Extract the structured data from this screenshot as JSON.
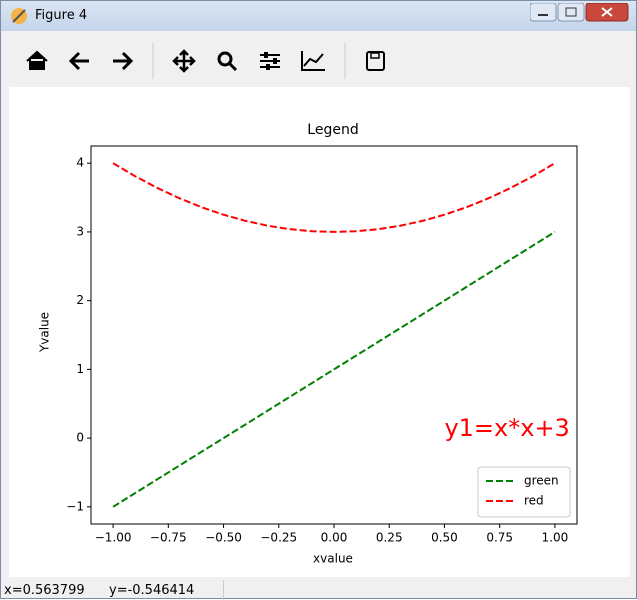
{
  "window": {
    "title": "Figure 4"
  },
  "status_bar": {
    "x": "x=0.563799",
    "y": "y=-0.546414"
  },
  "chart_data": {
    "type": "line",
    "title": "Legend",
    "x_label": "xvalue",
    "y_label": "Yvalue",
    "x": [
      -1,
      -0.9,
      -0.8,
      -0.7,
      -0.6,
      -0.5,
      -0.4,
      -0.3,
      -0.2,
      -0.1,
      0,
      0.1,
      0.2,
      0.3,
      0.4,
      0.5,
      0.6,
      0.7,
      0.8,
      0.9,
      1
    ],
    "series": [
      {
        "name": "green",
        "color": "#008000",
        "values": [
          -1,
          -0.8,
          -0.6,
          -0.4,
          -0.2,
          0,
          0.2,
          0.4,
          0.6,
          0.8,
          1,
          1.2,
          1.4,
          1.6,
          1.8,
          2,
          2.2,
          2.4,
          2.6,
          2.8,
          3
        ]
      },
      {
        "name": "red",
        "color": "#ff0000",
        "values": [
          4,
          3.81,
          3.64,
          3.49,
          3.36,
          3.25,
          3.16,
          3.09,
          3.04,
          3.01,
          3,
          3.01,
          3.04,
          3.09,
          3.16,
          3.25,
          3.36,
          3.49,
          3.64,
          3.81,
          4
        ]
      }
    ],
    "linestyle": "dashed",
    "legend": "lower right",
    "annotations": [
      {
        "text": "y1=x*x+3",
        "x": 0.5,
        "y": 0,
        "color": "#ff0000"
      }
    ],
    "xlim": [
      -1.1,
      1.1
    ],
    "xticks": [
      {
        "value": -1,
        "label": "−1.00"
      },
      {
        "value": -0.75,
        "label": "−0.75"
      },
      {
        "value": -0.5,
        "label": "−0.50"
      },
      {
        "value": -0.25,
        "label": "−0.25"
      },
      {
        "value": 0,
        "label": "0.00"
      },
      {
        "value": 0.25,
        "label": "0.25"
      },
      {
        "value": 0.5,
        "label": "0.50"
      },
      {
        "value": 0.75,
        "label": "0.75"
      },
      {
        "value": 1,
        "label": "1.00"
      }
    ],
    "ylim": [
      -1.25,
      4.25
    ],
    "yticks": [
      {
        "value": -1,
        "label": "−1"
      },
      0,
      1,
      2,
      3,
      4
    ]
  }
}
